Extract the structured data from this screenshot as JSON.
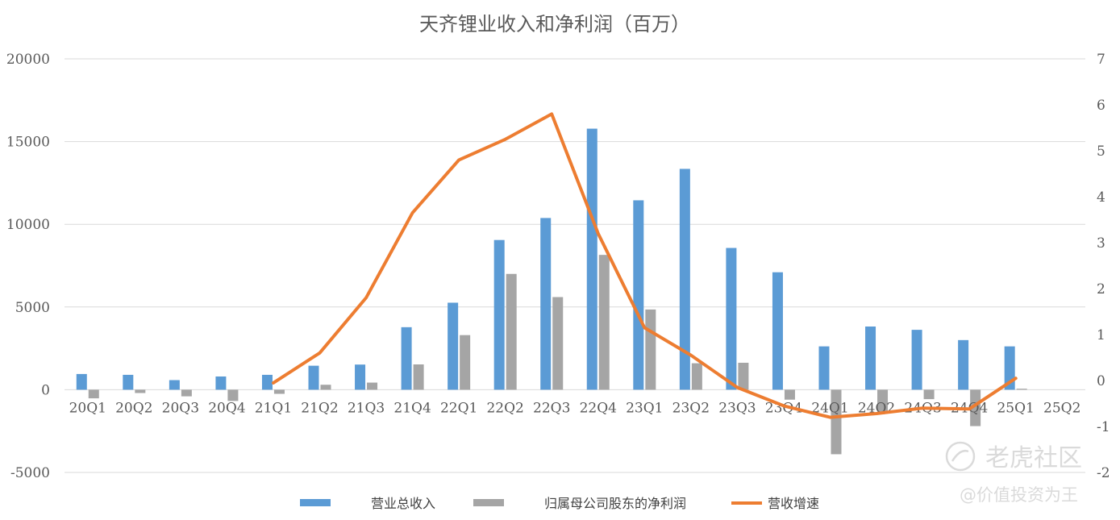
{
  "chart_data": {
    "type": "bar",
    "title": "天齐锂业收入和净利润（百万）",
    "categories": [
      "20Q1",
      "20Q2",
      "20Q3",
      "20Q4",
      "21Q1",
      "21Q2",
      "21Q3",
      "21Q4",
      "22Q1",
      "22Q2",
      "22Q3",
      "22Q4",
      "23Q1",
      "23Q2",
      "23Q3",
      "23Q4",
      "24Q1",
      "24Q2",
      "24Q3",
      "24Q4",
      "25Q1",
      "25Q2"
    ],
    "series": [
      {
        "name": "营业总收入",
        "kind": "bar",
        "axis": "left",
        "color": "#5B9BD5",
        "values": [
          950,
          900,
          580,
          800,
          900,
          1450,
          1520,
          3780,
          5260,
          9050,
          10380,
          15780,
          11450,
          13350,
          8570,
          7100,
          2620,
          3820,
          3620,
          3000,
          2620,
          null
        ]
      },
      {
        "name": "归属母公司股东的净利润",
        "kind": "bar",
        "axis": "left",
        "color": "#A5A5A5",
        "values": [
          -520,
          -200,
          -400,
          -680,
          -250,
          300,
          430,
          1530,
          3300,
          7000,
          5600,
          8150,
          4850,
          1600,
          1630,
          -600,
          -3900,
          -1400,
          -570,
          -2200,
          60,
          null
        ]
      },
      {
        "name": "营收增速",
        "kind": "line",
        "axis": "right",
        "color": "#ED7D31",
        "values": [
          null,
          null,
          null,
          null,
          -0.05,
          0.6,
          1.8,
          3.65,
          4.8,
          5.25,
          5.8,
          3.2,
          1.15,
          0.55,
          -0.15,
          -0.55,
          -0.8,
          -0.72,
          -0.6,
          -0.62,
          0.05,
          null
        ]
      }
    ],
    "y_left": {
      "min": -5000,
      "max": 20000,
      "ticks": [
        -5000,
        0,
        5000,
        10000,
        15000,
        20000
      ]
    },
    "y_right": {
      "min": -2,
      "max": 7,
      "ticks": [
        -2,
        -1,
        0,
        1,
        2,
        3,
        4,
        5,
        6,
        7
      ]
    },
    "grid": true,
    "legend_position": "bottom-center"
  },
  "watermark": {
    "brand": "老虎社区",
    "handle": "@价值投资为王"
  }
}
